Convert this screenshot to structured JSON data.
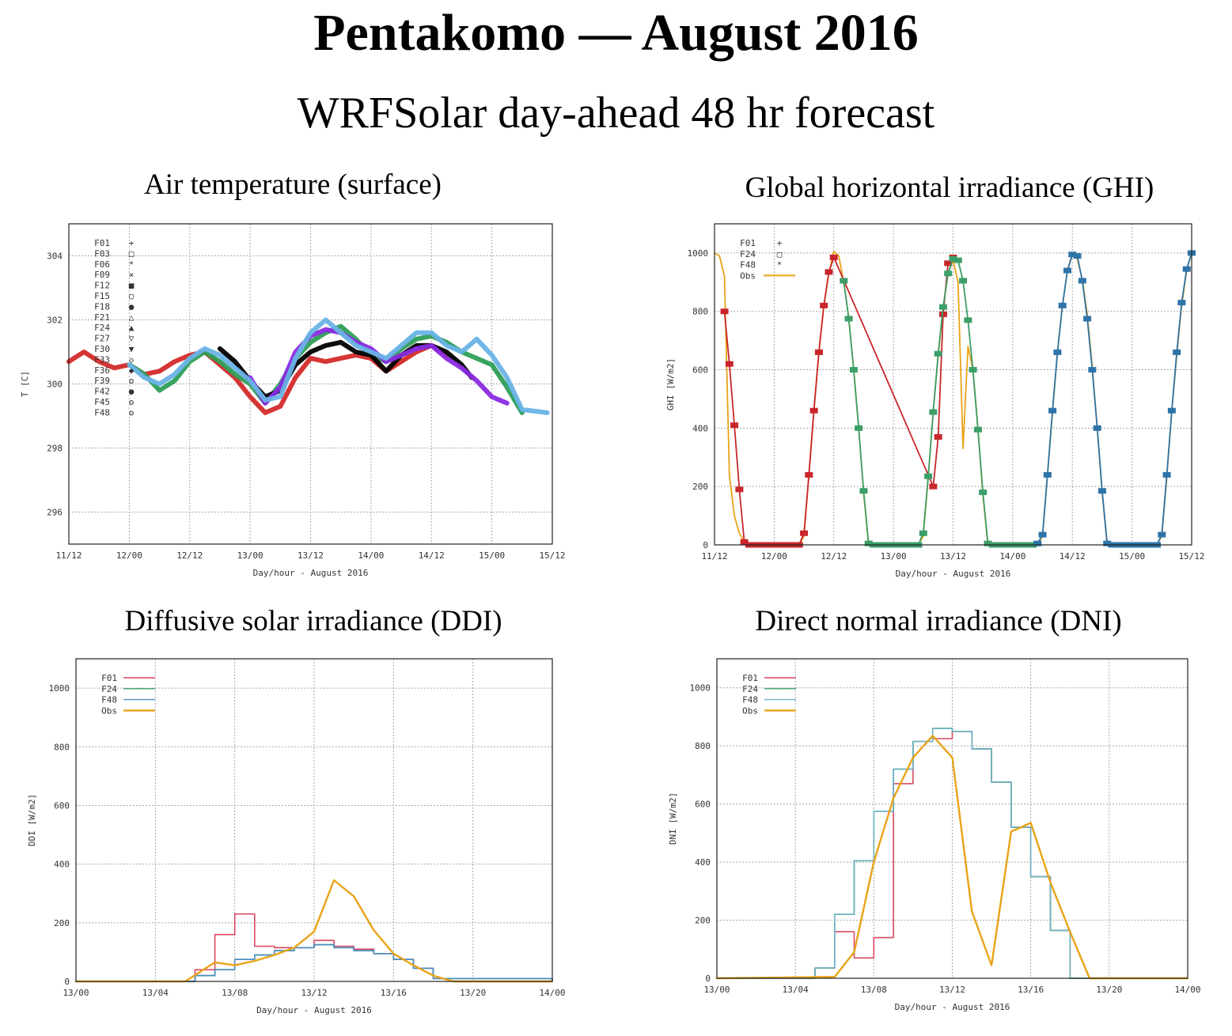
{
  "page": {
    "title": "Pentakomo — August 2016",
    "subtitle": "WRFSolar day-ahead 48 hr forecast"
  },
  "colors": {
    "obs": "#e8a317",
    "F01": "#d42a2a",
    "F24": "#2e9e57",
    "F48": "#3a86c8"
  },
  "chart_data": [
    {
      "id": "temp",
      "type": "scatter",
      "title": "Air temperature (surface)",
      "xlabel": "Day/hour - August 2016",
      "ylabel": "T [C]",
      "x_ticks": [
        "11/12",
        "12/00",
        "12/12",
        "13/00",
        "13/12",
        "14/00",
        "14/12",
        "15/00",
        "15/12"
      ],
      "xlim_hours": [
        0,
        96
      ],
      "y_ticks": [
        296,
        298,
        300,
        302,
        304
      ],
      "ylim": [
        295,
        305
      ],
      "grid": true,
      "legend_position": "top-left",
      "legend": [
        "F01",
        "F03",
        "F06",
        "F09",
        "F12",
        "F15",
        "F18",
        "F21",
        "F24",
        "F27",
        "F30",
        "F33",
        "F36",
        "F39",
        "F42",
        "F45",
        "F48"
      ],
      "legend_markers": [
        "+",
        "□",
        "*",
        "×",
        "■",
        "○",
        "●",
        "△",
        "▲",
        "▽",
        "▼",
        "◇",
        "◆",
        "ο",
        "●",
        "ʘ",
        "ʘ"
      ],
      "legend_colors": [
        "#d42a2a",
        "#2e9e57",
        "#3a86c8",
        "#c07ad0",
        "#3a86c8",
        "#e8a317",
        "#e8c800",
        "#3a86c8",
        "#f0d020",
        "#3a86c8",
        "#c02020",
        "#2e9e57",
        "#3a86c8",
        "#000000",
        "#8a2be2",
        "#2e9e57",
        "#69b3e7"
      ],
      "series": [
        {
          "name": "F01",
          "color": "#d42a2a",
          "x": [
            0,
            3,
            6,
            9,
            12,
            15,
            18,
            21,
            24,
            27,
            30,
            33,
            36,
            39,
            42,
            45,
            48,
            51,
            54,
            57,
            60,
            63,
            66,
            69,
            72,
            75
          ],
          "y": [
            300.7,
            301.0,
            300.7,
            300.5,
            300.6,
            300.3,
            300.4,
            300.7,
            300.9,
            301.0,
            300.6,
            300.2,
            299.6,
            299.1,
            299.3,
            300.2,
            300.8,
            300.7,
            300.8,
            300.9,
            300.8,
            300.4,
            300.7,
            301.0,
            301.2,
            300.9
          ]
        },
        {
          "name": "F24",
          "color": "#2e9e57",
          "x": [
            12,
            15,
            18,
            21,
            24,
            27,
            30,
            33,
            36,
            39,
            42,
            45,
            48,
            51,
            54,
            57,
            60,
            63,
            66,
            69,
            72,
            75,
            78,
            81,
            84,
            87,
            90
          ],
          "y": [
            300.6,
            300.3,
            299.8,
            300.1,
            300.7,
            301.0,
            300.7,
            300.3,
            300.0,
            299.4,
            300.0,
            300.8,
            301.3,
            301.6,
            301.8,
            301.4,
            300.9,
            300.7,
            301.1,
            301.4,
            301.5,
            301.3,
            301.0,
            300.8,
            300.6,
            299.9,
            299.1
          ]
        },
        {
          "name": "F39",
          "color": "#000000",
          "x": [
            30,
            33,
            36,
            39,
            42,
            45,
            48,
            51,
            54,
            57,
            60,
            63,
            66,
            69,
            72,
            75,
            78,
            80
          ],
          "y": [
            301.1,
            300.7,
            300.1,
            299.6,
            299.8,
            300.6,
            301.0,
            301.2,
            301.3,
            301.0,
            300.9,
            300.4,
            300.9,
            301.2,
            301.2,
            301.0,
            300.6,
            300.2
          ]
        },
        {
          "name": "F42",
          "color": "#8a2be2",
          "x": [
            36,
            39,
            42,
            45,
            48,
            51,
            54,
            57,
            60,
            63,
            66,
            69,
            72,
            75,
            78,
            81,
            84,
            87
          ],
          "y": [
            300.2,
            299.4,
            299.9,
            301.0,
            301.5,
            301.7,
            301.6,
            301.3,
            301.1,
            300.7,
            300.9,
            301.1,
            301.2,
            300.8,
            300.5,
            300.1,
            299.6,
            299.4
          ]
        },
        {
          "name": "F48",
          "color": "#69b3e7",
          "x": [
            12,
            15,
            18,
            21,
            24,
            27,
            30,
            33,
            36,
            39,
            42,
            45,
            48,
            51,
            54,
            57,
            60,
            63,
            66,
            69,
            72,
            75,
            78,
            81,
            84,
            87,
            90,
            95
          ],
          "y": [
            300.6,
            300.2,
            300.0,
            300.3,
            300.8,
            301.1,
            300.9,
            300.5,
            300.1,
            299.5,
            299.6,
            300.8,
            301.6,
            302.0,
            301.6,
            301.2,
            301.0,
            300.8,
            301.2,
            301.6,
            301.6,
            301.2,
            301.0,
            301.4,
            300.9,
            300.2,
            299.2,
            299.1
          ]
        }
      ]
    },
    {
      "id": "ghi",
      "type": "line",
      "title": "Global horizontal irradiance (GHI)",
      "xlabel": "Day/hour - August 2016",
      "ylabel": "GHI [W/m2]",
      "x_ticks": [
        "11/12",
        "12/00",
        "12/12",
        "13/00",
        "13/12",
        "14/00",
        "14/12",
        "15/00",
        "15/12"
      ],
      "xlim_hours": [
        0,
        96
      ],
      "y_ticks": [
        0,
        200,
        400,
        600,
        800,
        1000
      ],
      "ylim": [
        0,
        1100
      ],
      "grid": true,
      "legend_position": "top-left",
      "legend": [
        "F01",
        "F24",
        "F48",
        "Obs"
      ],
      "series": [
        {
          "name": "Obs",
          "color": "#e8a317",
          "x": [
            0,
            1,
            2,
            3,
            4,
            5,
            6,
            7,
            8,
            17,
            18,
            19,
            20,
            21,
            22,
            23,
            24,
            25,
            26,
            27,
            28,
            29,
            30,
            31,
            41,
            42,
            43,
            44,
            45,
            46,
            47,
            48,
            49,
            50,
            51,
            52,
            53,
            54,
            55,
            65,
            66,
            67,
            68,
            69,
            70,
            71,
            72,
            73,
            74,
            75,
            76,
            77,
            78,
            79,
            89,
            90,
            91,
            92,
            93,
            94,
            95,
            96
          ],
          "y": [
            1000,
            990,
            920,
            240,
            100,
            40,
            10,
            0,
            0,
            0,
            30,
            240,
            460,
            660,
            820,
            930,
            1005,
            990,
            900,
            780,
            600,
            400,
            180,
            0,
            0,
            30,
            230,
            460,
            650,
            810,
            930,
            975,
            900,
            330,
            680,
            600,
            400,
            170,
            0,
            0,
            30,
            240,
            450,
            660,
            820,
            940,
            1000,
            980,
            910,
            790,
            610,
            400,
            180,
            0,
            0,
            30,
            230,
            460,
            650,
            820,
            940,
            1000
          ]
        },
        {
          "name": "F01",
          "color": "#c8262b",
          "marker": "+",
          "x": [
            2,
            3,
            4,
            5,
            6,
            7,
            8,
            9,
            10,
            11,
            12,
            13,
            14,
            15,
            16,
            17,
            18,
            19,
            20,
            21,
            22,
            23,
            24,
            44,
            45,
            46,
            47,
            48
          ],
          "y": [
            800,
            620,
            410,
            190,
            10,
            0,
            0,
            0,
            0,
            0,
            0,
            0,
            0,
            0,
            0,
            0,
            40,
            240,
            460,
            660,
            820,
            935,
            985,
            200,
            370,
            790,
            965,
            985
          ]
        },
        {
          "name": "F24",
          "color": "#3c9e68",
          "marker": "□",
          "x": [
            26,
            27,
            28,
            29,
            30,
            31,
            32,
            33,
            34,
            35,
            36,
            37,
            38,
            39,
            40,
            41,
            42,
            43,
            44,
            45,
            46,
            47,
            48,
            49,
            50,
            51,
            52,
            53,
            54,
            55,
            56,
            57,
            58,
            59,
            60,
            61,
            62,
            63,
            64
          ],
          "y": [
            905,
            775,
            600,
            400,
            185,
            5,
            0,
            0,
            0,
            0,
            0,
            0,
            0,
            0,
            0,
            0,
            40,
            235,
            455,
            655,
            815,
            930,
            980,
            975,
            905,
            770,
            600,
            395,
            180,
            5,
            0,
            0,
            0,
            0,
            0,
            0,
            0,
            0,
            0
          ]
        },
        {
          "name": "F48",
          "color": "#2e74a8",
          "marker": "*",
          "x": [
            65,
            66,
            67,
            68,
            69,
            70,
            71,
            72,
            73,
            74,
            75,
            76,
            77,
            78,
            79,
            80,
            81,
            82,
            83,
            84,
            85,
            86,
            87,
            88,
            89,
            90,
            91,
            92,
            93,
            94,
            95,
            96
          ],
          "y": [
            5,
            35,
            240,
            460,
            660,
            820,
            940,
            995,
            990,
            905,
            775,
            600,
            400,
            185,
            5,
            0,
            0,
            0,
            0,
            0,
            0,
            0,
            0,
            0,
            0,
            35,
            240,
            460,
            660,
            830,
            945,
            1000
          ]
        }
      ]
    },
    {
      "id": "ddi",
      "type": "line",
      "title": "Diffusive solar irradiance (DDI)",
      "xlabel": "Day/hour - August 2016",
      "ylabel": "DDI [W/m2]",
      "x_ticks": [
        "13/00",
        "13/04",
        "13/08",
        "13/12",
        "13/16",
        "13/20",
        "14/00"
      ],
      "xlim_hours": [
        0,
        24
      ],
      "y_ticks": [
        0,
        200,
        400,
        600,
        800,
        1000
      ],
      "ylim": [
        0,
        1100
      ],
      "grid": true,
      "legend_position": "top-left",
      "legend": [
        "F01",
        "F24",
        "F48",
        "Obs"
      ],
      "series": [
        {
          "name": "F01",
          "color": "#d9485f",
          "step": true,
          "x": [
            0,
            6,
            7,
            8,
            9,
            10,
            11,
            12,
            13,
            14,
            15,
            16,
            17,
            18,
            24
          ],
          "y": [
            0,
            40,
            160,
            230,
            120,
            115,
            115,
            140,
            120,
            110,
            95,
            75,
            45,
            10,
            0
          ]
        },
        {
          "name": "F24",
          "color": "#3c9e68",
          "step": true,
          "x": [
            0,
            6,
            7,
            8,
            9,
            10,
            11,
            12,
            13,
            14,
            15,
            16,
            17,
            18,
            24
          ],
          "y": [
            0,
            20,
            40,
            75,
            90,
            105,
            115,
            125,
            115,
            105,
            95,
            75,
            45,
            10,
            0
          ]
        },
        {
          "name": "F48",
          "color": "#4a8cc2",
          "step": true,
          "x": [
            0,
            6,
            7,
            8,
            9,
            10,
            11,
            12,
            13,
            14,
            15,
            16,
            17,
            18,
            24
          ],
          "y": [
            0,
            20,
            40,
            75,
            90,
            105,
            115,
            125,
            115,
            105,
            95,
            75,
            45,
            10,
            0
          ]
        },
        {
          "name": "Obs",
          "color": "#e8a317",
          "step": false,
          "x": [
            0,
            5.5,
            7,
            8,
            9,
            10,
            11,
            12,
            13,
            14,
            15,
            16,
            17,
            18,
            19,
            24
          ],
          "y": [
            0,
            0,
            65,
            55,
            70,
            90,
            115,
            170,
            345,
            290,
            175,
            95,
            55,
            20,
            0,
            0
          ]
        }
      ]
    },
    {
      "id": "dni",
      "type": "line",
      "title": "Direct normal irradiance (DNI)",
      "xlabel": "Day/hour - August 2016",
      "ylabel": "DNI [W/m2]",
      "x_ticks": [
        "13/00",
        "13/04",
        "13/08",
        "13/12",
        "13/16",
        "13/20",
        "14/00"
      ],
      "xlim_hours": [
        0,
        24
      ],
      "y_ticks": [
        0,
        200,
        400,
        600,
        800,
        1000
      ],
      "ylim": [
        0,
        1100
      ],
      "grid": true,
      "legend_position": "top-left",
      "legend": [
        "F01",
        "F24",
        "F48",
        "Obs"
      ],
      "series": [
        {
          "name": "F01",
          "color": "#d9485f",
          "step": true,
          "x": [
            0,
            5,
            6,
            7,
            8,
            9,
            10,
            11,
            12,
            13,
            14,
            15,
            16,
            17,
            18,
            24
          ],
          "y": [
            0,
            35,
            160,
            70,
            140,
            670,
            815,
            825,
            850,
            790,
            675,
            520,
            350,
            165,
            0,
            0
          ]
        },
        {
          "name": "F24",
          "color": "#3c9e68",
          "step": true,
          "x": [
            0,
            5,
            6,
            7,
            8,
            9,
            10,
            11,
            12,
            13,
            14,
            15,
            16,
            17,
            18,
            24
          ],
          "y": [
            0,
            35,
            220,
            405,
            575,
            720,
            815,
            860,
            850,
            790,
            675,
            520,
            350,
            165,
            0,
            0
          ]
        },
        {
          "name": "F48",
          "color": "#6fb3c8",
          "step": true,
          "x": [
            0,
            5,
            6,
            7,
            8,
            9,
            10,
            11,
            12,
            13,
            14,
            15,
            16,
            17,
            18,
            24
          ],
          "y": [
            0,
            35,
            220,
            405,
            575,
            720,
            815,
            860,
            850,
            790,
            675,
            520,
            350,
            165,
            0,
            0
          ]
        },
        {
          "name": "Obs",
          "color": "#e8a317",
          "step": false,
          "x": [
            0,
            6,
            7,
            8,
            9,
            10,
            11,
            12,
            13,
            14,
            15,
            16,
            17,
            18,
            19,
            24
          ],
          "y": [
            0,
            5,
            90,
            400,
            620,
            760,
            835,
            760,
            230,
            45,
            505,
            535,
            330,
            160,
            0,
            0
          ]
        }
      ]
    }
  ]
}
